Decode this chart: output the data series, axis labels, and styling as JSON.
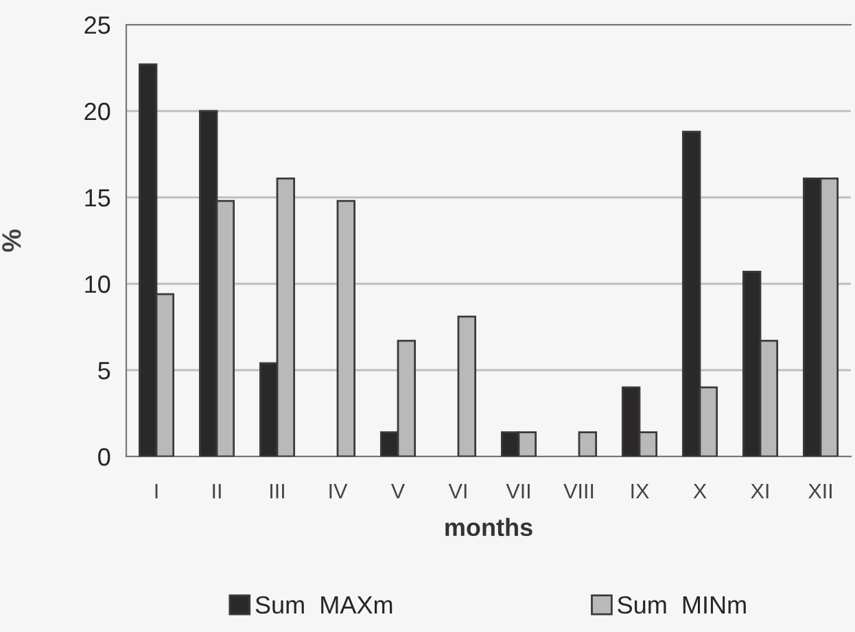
{
  "chart_data": {
    "type": "bar",
    "xlabel": "months",
    "ylabel": "%",
    "categories": [
      "I",
      "II",
      "III",
      "IV",
      "V",
      "VI",
      "VII",
      "VIII",
      "IX",
      "X",
      "XI",
      "XII"
    ],
    "series": [
      {
        "name": "Sum  MAXm",
        "color": "#2b2828",
        "values": [
          22.7,
          20.0,
          5.4,
          0,
          1.4,
          0,
          1.4,
          0,
          4.0,
          18.8,
          10.7,
          16.1
        ]
      },
      {
        "name": "Sum  MINm",
        "color": "#b9b9b9",
        "values": [
          9.4,
          14.8,
          16.1,
          14.8,
          6.7,
          8.1,
          1.4,
          1.4,
          1.4,
          4.0,
          6.7,
          16.1
        ]
      }
    ],
    "ylim": [
      0,
      25
    ],
    "yticks": [
      0,
      5,
      10,
      15,
      20,
      25
    ],
    "grid": "y",
    "legend": "bottom"
  }
}
